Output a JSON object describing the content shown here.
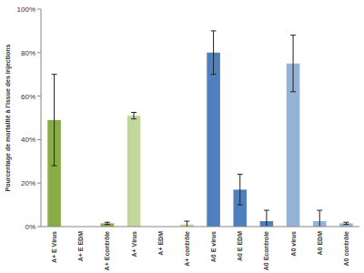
{
  "chart_data": {
    "type": "bar",
    "y_label": "Pourcentage de mortalité à l'issue des injections",
    "categories": [
      "A+ E Virus",
      "A+ E EDM",
      "A+ Econtrôle",
      "A+ Virus",
      "A+ EDM",
      "A+ contrôle",
      "A0 E virus",
      "A0 E EDM",
      "A0 Econtrole",
      "A0 virus",
      "A0 EDM",
      "A0 contrôle"
    ],
    "values": [
      49,
      0,
      1.5,
      51,
      0,
      1,
      80,
      17,
      2.5,
      75,
      2.5,
      1.5
    ],
    "errors": [
      21,
      0,
      0.5,
      1.5,
      0,
      1.5,
      10,
      7,
      5,
      13,
      5,
      0.5
    ],
    "colors": [
      "#8aab45",
      "#8aab45",
      "#8aab45",
      "#c3d69b",
      "#c3d69b",
      "#c3d69b",
      "#4f7fbd",
      "#4f7fbd",
      "#4f7fbd",
      "#95b3d7",
      "#95b3d7",
      "#95b3d7"
    ],
    "ylim": [
      0,
      100
    ],
    "yticks": [
      {
        "value": 0,
        "label": "0%"
      },
      {
        "value": 20,
        "label": "20%"
      },
      {
        "value": 40,
        "label": "40%"
      },
      {
        "value": 60,
        "label": "60%"
      },
      {
        "value": 80,
        "label": "80%"
      },
      {
        "value": 100,
        "label": "100%"
      }
    ],
    "grid": false
  }
}
